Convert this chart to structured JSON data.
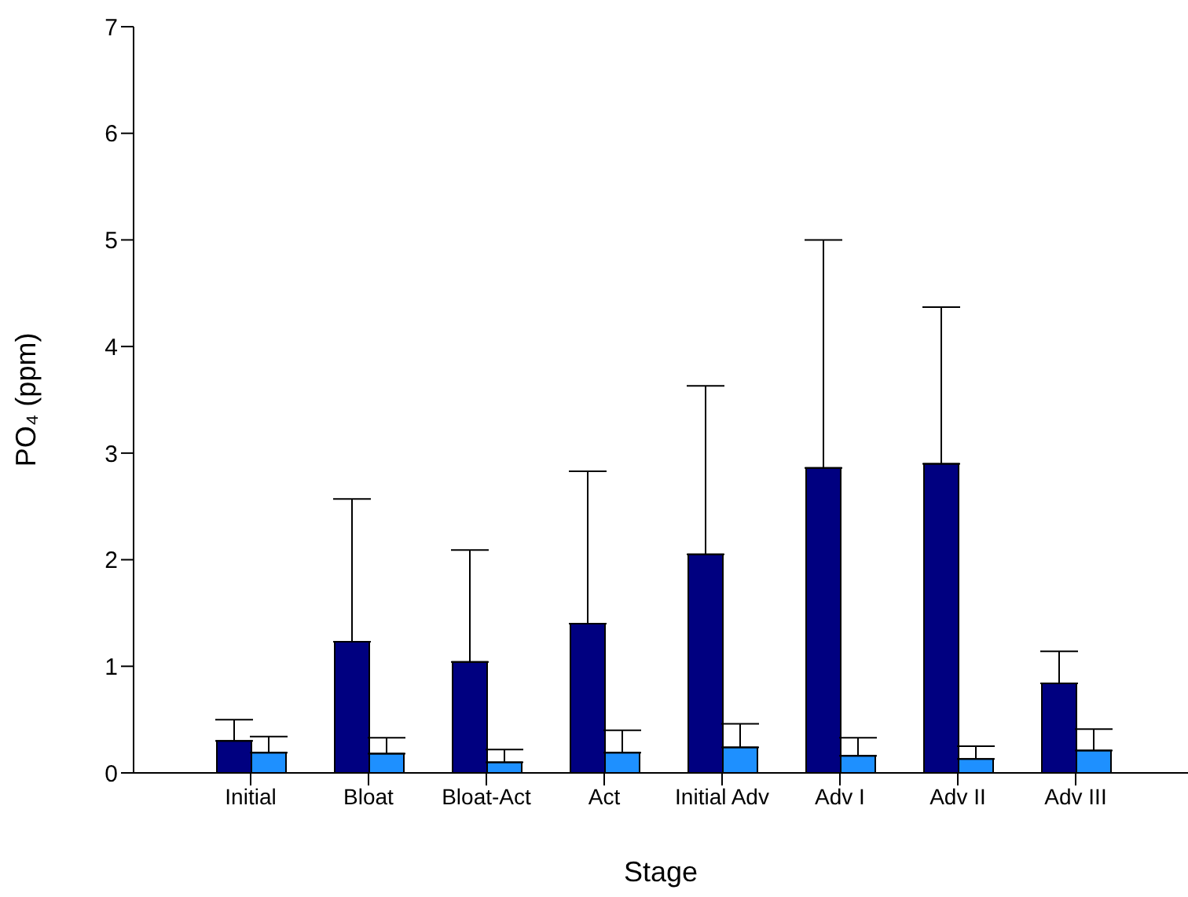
{
  "chart_data": {
    "type": "bar",
    "xlabel": "Stage",
    "ylabel": "PO₄ (ppm)",
    "categories": [
      "Initial",
      "Bloat",
      "Bloat-Act",
      "Act",
      "Initial Adv",
      "Adv I",
      "Adv II",
      "Adv III"
    ],
    "series": [
      {
        "color": "#000080",
        "values": [
          0.3,
          1.23,
          1.04,
          1.4,
          2.05,
          2.86,
          2.9,
          0.84
        ],
        "errors": [
          [
            0.3,
            0.5
          ],
          [
            1.23,
            2.57
          ],
          [
            1.04,
            2.09
          ],
          [
            1.4,
            2.83
          ],
          [
            2.05,
            3.63
          ],
          [
            2.86,
            5.0
          ],
          [
            2.9,
            4.37
          ],
          [
            0.84,
            1.14
          ]
        ]
      },
      {
        "color": "#1e90ff",
        "values": [
          0.19,
          0.18,
          0.1,
          0.19,
          0.24,
          0.16,
          0.13,
          0.21
        ],
        "errors": [
          [
            0.19,
            0.34
          ],
          [
            0.18,
            0.33
          ],
          [
            0.1,
            0.22
          ],
          [
            0.19,
            0.4
          ],
          [
            0.24,
            0.46
          ],
          [
            0.16,
            0.33
          ],
          [
            0.13,
            0.25
          ],
          [
            0.21,
            0.41
          ]
        ]
      }
    ],
    "ylim": [
      0,
      7
    ],
    "yticks": [
      0,
      1,
      2,
      3,
      4,
      5,
      6,
      7
    ],
    "grid": false,
    "legend": false
  }
}
